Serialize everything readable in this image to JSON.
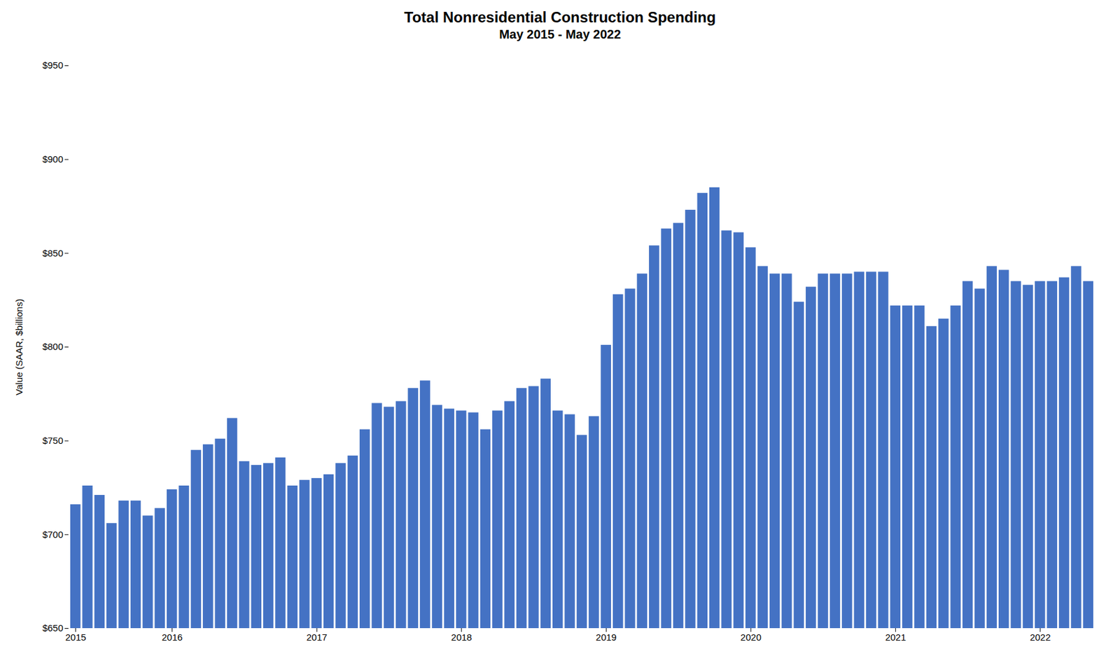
{
  "chart_data": {
    "type": "bar",
    "title": "Total Nonresidential Construction Spending",
    "subtitle": "May 2015 - May 2022",
    "ylabel": "Value (SAAR, $billions)",
    "categories": [
      "2015",
      null,
      null,
      null,
      null,
      null,
      null,
      null,
      "2016",
      null,
      null,
      null,
      null,
      null,
      null,
      null,
      null,
      null,
      null,
      null,
      "2017",
      null,
      null,
      null,
      null,
      null,
      null,
      null,
      null,
      null,
      null,
      null,
      "2018",
      null,
      null,
      null,
      null,
      null,
      null,
      null,
      null,
      null,
      null,
      null,
      "2019",
      null,
      null,
      null,
      null,
      null,
      null,
      null,
      null,
      null,
      null,
      null,
      "2020",
      null,
      null,
      null,
      null,
      null,
      null,
      null,
      null,
      null,
      null,
      null,
      "2021",
      null,
      null,
      null,
      null,
      null,
      null,
      null,
      null,
      null,
      null,
      null,
      "2022",
      null,
      null,
      null,
      null
    ],
    "values": [
      716,
      726,
      721,
      706,
      718,
      718,
      710,
      714,
      724,
      726,
      745,
      748,
      751,
      762,
      739,
      737,
      738,
      741,
      726,
      729,
      730,
      732,
      738,
      742,
      756,
      770,
      768,
      771,
      778,
      782,
      769,
      767,
      766,
      765,
      756,
      766,
      771,
      778,
      779,
      783,
      766,
      764,
      753,
      763,
      801,
      828,
      831,
      839,
      854,
      863,
      866,
      873,
      882,
      885,
      862,
      861,
      853,
      843,
      839,
      839,
      824,
      832,
      839,
      839,
      839,
      840,
      840,
      840,
      822,
      822,
      822,
      811,
      815,
      822,
      835,
      831,
      843,
      841,
      835,
      833,
      835,
      835,
      837,
      843,
      835
    ],
    "color": "#4472C4",
    "ylim": [
      650,
      950
    ],
    "yticks": [
      {
        "value": 650,
        "label": "$650"
      },
      {
        "value": 700,
        "label": "$700"
      },
      {
        "value": 750,
        "label": "$750"
      },
      {
        "value": 800,
        "label": "$800"
      },
      {
        "value": 850,
        "label": "$850"
      },
      {
        "value": 900,
        "label": "$900"
      },
      {
        "value": 950,
        "label": "$950"
      }
    ],
    "grid": false
  }
}
